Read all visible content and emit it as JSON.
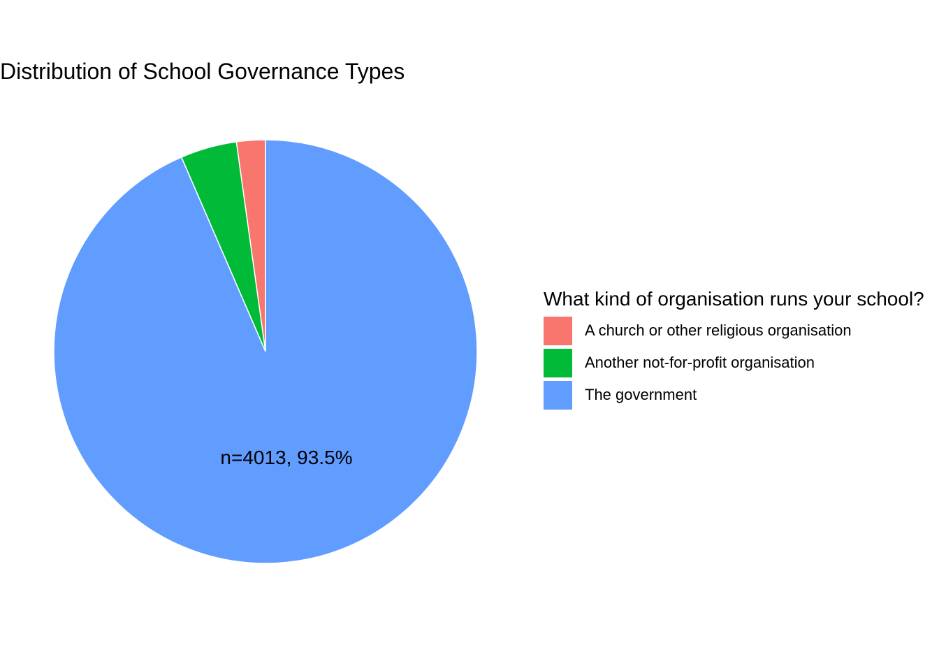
{
  "chart_data": {
    "type": "pie",
    "title": "Distribution of School Governance Types",
    "legend_title": "What kind of organisation runs your school?",
    "legend_position": "right",
    "slices": [
      {
        "label": "A church or other religious organisation",
        "percent": 2.2,
        "color": "#F8766D"
      },
      {
        "label": "Another not-for-profit organisation",
        "percent": 4.3,
        "color": "#00BA38"
      },
      {
        "label": "The government",
        "percent": 93.5,
        "n": 4013,
        "color": "#619CFF"
      }
    ],
    "annotations": [
      "n=4013, 93.5%"
    ]
  }
}
